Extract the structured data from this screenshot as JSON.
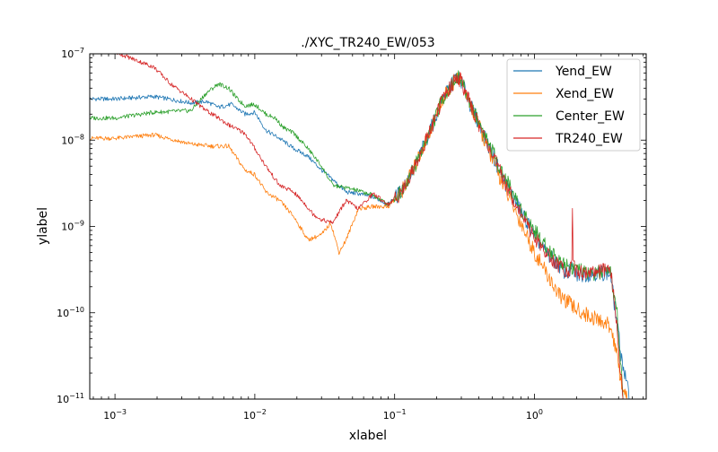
{
  "chart_data": {
    "type": "line",
    "title": "./XYC_TR240_EW/053",
    "xlabel": "xlabel",
    "ylabel": "ylabel",
    "xscale": "log",
    "yscale": "log",
    "xlim": [
      0.00066,
      6.3
    ],
    "ylim": [
      1e-11,
      1e-07
    ],
    "grid": false,
    "legend_position": "top-right",
    "x_ticks": [
      {
        "value": 0.001,
        "base": "10",
        "exp": "−3"
      },
      {
        "value": 0.01,
        "base": "10",
        "exp": "−2"
      },
      {
        "value": 0.1,
        "base": "10",
        "exp": "−1"
      },
      {
        "value": 1,
        "base": "10",
        "exp": "0"
      }
    ],
    "y_ticks": [
      {
        "value": 1e-11,
        "base": "10",
        "exp": "−11"
      },
      {
        "value": 1e-10,
        "base": "10",
        "exp": "−10"
      },
      {
        "value": 1e-09,
        "base": "10",
        "exp": "−9"
      },
      {
        "value": 1e-08,
        "base": "10",
        "exp": "−8"
      },
      {
        "value": 1e-07,
        "base": "10",
        "exp": "−7"
      }
    ],
    "series": [
      {
        "name": "Yend_EW",
        "color": "#1f77b4",
        "x": [
          0.00066,
          0.001,
          0.0019,
          0.0035,
          0.0045,
          0.0055,
          0.0068,
          0.0085,
          0.01,
          0.012,
          0.015,
          0.019,
          0.024,
          0.03,
          0.036,
          0.045,
          0.055,
          0.07,
          0.09,
          0.11,
          0.14,
          0.18,
          0.22,
          0.26,
          0.28,
          0.3,
          0.35,
          0.45,
          0.6,
          0.8,
          1.0,
          1.2,
          1.5,
          1.7,
          1.85,
          2.0,
          2.4,
          3.0,
          3.5,
          3.8,
          4.2,
          4.8
        ],
        "y": [
          3e-08,
          3e-08,
          3.2e-08,
          2.7e-08,
          2.8e-08,
          2.4e-08,
          2.6e-08,
          2e-08,
          2.1e-08,
          1.3e-08,
          1.05e-08,
          8e-09,
          6.5e-09,
          4.5e-09,
          3.5e-09,
          2.5e-09,
          2.4e-09,
          2.2e-09,
          1.8e-09,
          2.5e-09,
          5e-09,
          1.3e-08,
          3e-08,
          4.5e-08,
          5.5e-08,
          4.8e-08,
          2.5e-08,
          1e-08,
          3.5e-09,
          1.5e-09,
          8e-10,
          5e-10,
          3.5e-10,
          2.8e-10,
          3.2e-10,
          2.7e-10,
          2.8e-10,
          2.9e-10,
          2.8e-10,
          1e-10,
          3e-11,
          1e-11
        ]
      },
      {
        "name": "Xend_EW",
        "color": "#ff7f0e",
        "x": [
          0.00066,
          0.001,
          0.0019,
          0.0035,
          0.005,
          0.0065,
          0.0085,
          0.01,
          0.012,
          0.015,
          0.019,
          0.024,
          0.03,
          0.035,
          0.04,
          0.045,
          0.055,
          0.07,
          0.09,
          0.11,
          0.14,
          0.18,
          0.22,
          0.26,
          0.28,
          0.3,
          0.35,
          0.45,
          0.6,
          0.8,
          1.0,
          1.2,
          1.5,
          2.0,
          2.5,
          3.0,
          3.5,
          3.8,
          4.2,
          4.6
        ],
        "y": [
          1.05e-08,
          1.05e-08,
          1.15e-08,
          9e-09,
          8.5e-09,
          8.5e-09,
          4.5e-09,
          4e-09,
          2.5e-09,
          2e-09,
          1.3e-09,
          7e-10,
          8e-10,
          1.1e-09,
          5e-10,
          7e-10,
          1.6e-09,
          1.7e-09,
          1.7e-09,
          2.4e-09,
          5e-09,
          1.3e-08,
          3e-08,
          4.5e-08,
          5.5e-08,
          4.8e-08,
          2.5e-08,
          9e-09,
          3e-09,
          1.1e-09,
          5e-10,
          3e-10,
          1.6e-10,
          1.1e-10,
          9e-11,
          8e-11,
          7e-11,
          4e-11,
          1.5e-11,
          1e-11
        ]
      },
      {
        "name": "Center_EW",
        "color": "#2ca02c",
        "x": [
          0.00066,
          0.001,
          0.0019,
          0.0035,
          0.0045,
          0.0055,
          0.0065,
          0.0075,
          0.0085,
          0.01,
          0.012,
          0.014,
          0.016,
          0.019,
          0.024,
          0.03,
          0.036,
          0.045,
          0.055,
          0.07,
          0.09,
          0.11,
          0.14,
          0.18,
          0.22,
          0.26,
          0.28,
          0.3,
          0.35,
          0.45,
          0.6,
          0.8,
          1.0,
          1.2,
          1.5,
          1.8,
          2.0,
          2.5,
          3.0,
          3.5,
          3.9,
          4.3
        ],
        "y": [
          1.8e-08,
          1.8e-08,
          2.1e-08,
          2.2e-08,
          3.5e-08,
          4.5e-08,
          4e-08,
          3e-08,
          2.5e-08,
          2.6e-08,
          2e-08,
          1.8e-08,
          1.4e-08,
          1.2e-08,
          8e-09,
          5e-09,
          3e-09,
          2.8e-09,
          2.6e-09,
          2.3e-09,
          1.8e-09,
          2.5e-09,
          5e-09,
          1.3e-08,
          3e-08,
          4.5e-08,
          5.5e-08,
          4.8e-08,
          2.6e-08,
          1.1e-08,
          4e-09,
          1.6e-09,
          9e-10,
          6e-10,
          4e-10,
          3.5e-10,
          3.2e-10,
          2.8e-10,
          2.9e-10,
          2.8e-10,
          1e-10,
          1e-11
        ]
      },
      {
        "name": "TR240_EW",
        "color": "#d62728",
        "x": [
          0.00066,
          0.001,
          0.0019,
          0.0025,
          0.0035,
          0.0045,
          0.0055,
          0.0065,
          0.0085,
          0.01,
          0.012,
          0.015,
          0.019,
          0.023,
          0.026,
          0.03,
          0.036,
          0.045,
          0.055,
          0.07,
          0.09,
          0.11,
          0.14,
          0.18,
          0.22,
          0.26,
          0.28,
          0.3,
          0.35,
          0.45,
          0.6,
          0.8,
          1.0,
          1.2,
          1.5,
          1.75,
          1.85,
          1.87,
          1.89,
          1.95,
          2.2,
          2.6,
          3.0,
          3.5,
          3.8,
          4.3
        ],
        "y": [
          1.3e-07,
          1.05e-07,
          7e-08,
          4.5e-08,
          3e-08,
          2.2e-08,
          1.8e-08,
          1.5e-08,
          1.2e-08,
          8e-09,
          5e-09,
          3e-09,
          2.5e-09,
          1.8e-09,
          1.4e-09,
          1.2e-09,
          1.1e-09,
          2e-09,
          1.6e-09,
          2.4e-09,
          1.8e-09,
          2.4e-09,
          5e-09,
          1.3e-08,
          3e-08,
          4.5e-08,
          5.5e-08,
          4.8e-08,
          2.5e-08,
          1e-08,
          3.5e-09,
          1.4e-09,
          7.5e-10,
          5e-10,
          3.5e-10,
          3e-10,
          4e-10,
          1.5e-09,
          4e-10,
          3.2e-10,
          2.9e-10,
          3e-10,
          3e-10,
          3.2e-10,
          1e-10,
          1e-11
        ]
      }
    ]
  }
}
